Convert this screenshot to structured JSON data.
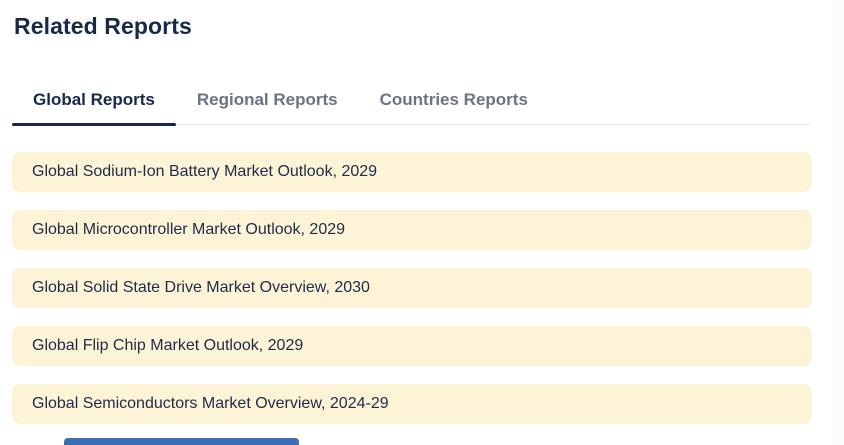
{
  "section": {
    "title": "Related Reports"
  },
  "tabs": [
    {
      "label": "Global Reports",
      "active": true
    },
    {
      "label": "Regional Reports",
      "active": false
    },
    {
      "label": "Countries Reports",
      "active": false
    }
  ],
  "reports": [
    {
      "title": "Global Sodium-Ion Battery Market Outlook, 2029"
    },
    {
      "title": "Global Microcontroller Market Outlook, 2029"
    },
    {
      "title": "Global Solid State Drive Market Overview, 2030"
    },
    {
      "title": "Global Flip Chip Market Outlook, 2029"
    },
    {
      "title": "Global Semiconductors Market Overview, 2024-29"
    }
  ],
  "colors": {
    "heading_text": "#16294a",
    "active_tab": "#16294a",
    "inactive_tab": "#6b7480",
    "tab_underline": "#16294a",
    "tab_border": "#e8e8eb",
    "card_background": "#fdf3d6",
    "card_text": "#1e2c49",
    "cutoff_element": "#3a6db6",
    "page_background": "#ffffff",
    "edge_strip": "#fbfbfb"
  }
}
